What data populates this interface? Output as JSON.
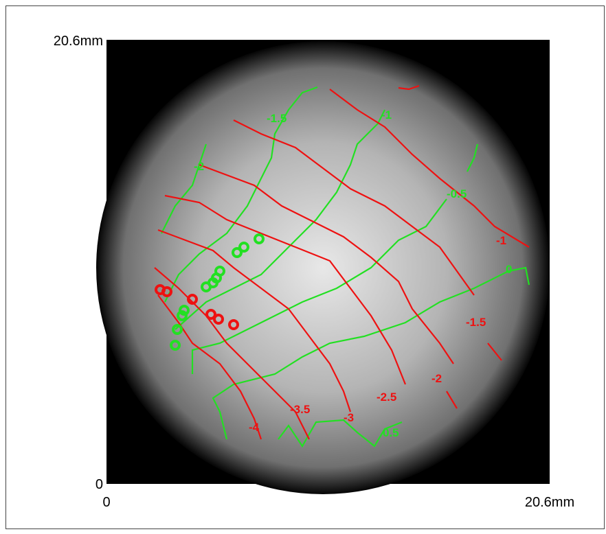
{
  "axes": {
    "y_top": "20.6mm",
    "y_bottom": "0",
    "x_left": "0",
    "x_right": "20.6mm"
  },
  "green_contours": {
    "color": "#22e022",
    "labels": [
      "-2",
      "-1.5",
      "-1",
      "-0.5",
      "0",
      "0.5"
    ]
  },
  "red_contours": {
    "color": "#ee1111",
    "labels": [
      "-1",
      "-1.5",
      "-2",
      "-2.5",
      "-3",
      "-3.5",
      "-4"
    ]
  }
}
